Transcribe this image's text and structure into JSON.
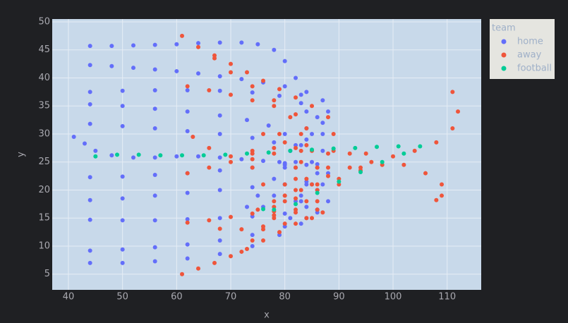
{
  "chart_data": {
    "type": "scatter",
    "x_label": "x",
    "y_label": "y",
    "legend_title": "team",
    "legend_position": "right",
    "grid": true,
    "xlim": [
      37,
      116.3
    ],
    "ylim": [
      2.2,
      50.5
    ],
    "xticks": [
      40,
      50,
      60,
      70,
      80,
      90,
      100,
      110
    ],
    "yticks": [
      5,
      10,
      15,
      20,
      25,
      30,
      35,
      40,
      45,
      50
    ],
    "series": [
      {
        "name": "home",
        "color": "#636efa",
        "x": [
          44,
          48,
          52,
          56,
          60,
          64,
          68,
          72,
          75,
          78,
          80,
          82,
          83,
          84,
          84,
          83,
          82,
          44,
          48,
          52,
          56,
          60,
          64,
          68,
          72,
          76,
          80,
          84,
          87,
          88,
          87,
          85,
          82,
          79,
          44,
          50,
          56,
          62,
          68,
          74,
          79,
          83,
          86,
          87,
          87,
          86,
          84,
          82,
          44,
          50,
          56,
          62,
          68,
          73,
          77,
          80,
          81,
          80,
          78,
          75,
          73,
          44,
          50,
          56,
          62,
          68,
          74,
          78,
          81,
          82,
          80,
          78,
          76,
          41,
          43,
          45,
          48,
          52,
          56,
          60,
          64,
          68,
          72,
          76,
          80,
          84,
          86,
          85,
          83,
          44,
          50,
          56,
          62,
          68,
          74,
          80,
          86,
          88,
          86,
          83,
          44,
          50,
          56,
          62,
          68,
          74,
          80,
          84,
          86,
          84,
          81,
          44,
          50,
          56,
          62,
          68,
          74,
          80,
          86,
          88,
          87,
          85,
          84,
          44,
          50,
          56,
          62,
          68,
          74,
          80,
          84,
          86,
          44,
          50,
          56,
          62,
          68,
          74,
          79,
          83,
          86
        ],
        "y": [
          45.7,
          45.7,
          45.8,
          45.9,
          46,
          46.2,
          46.3,
          46.3,
          46,
          45,
          43,
          40,
          37,
          34,
          31,
          28,
          25,
          42.3,
          42.1,
          41.8,
          41.5,
          41.2,
          40.8,
          40.3,
          39.8,
          39.2,
          38.5,
          37.5,
          36,
          34,
          32,
          30,
          28,
          25,
          37.5,
          37.7,
          37.8,
          37.8,
          37.7,
          37.4,
          36.8,
          35.5,
          33,
          30,
          27,
          24,
          21,
          18,
          35.3,
          35,
          34.5,
          34,
          33.3,
          32.5,
          31.5,
          30,
          27,
          24,
          22,
          19,
          17,
          31.8,
          31.4,
          31,
          30.5,
          30,
          29.3,
          28.5,
          27,
          24,
          21,
          19,
          17,
          29.5,
          28.3,
          27,
          26.2,
          25.8,
          25.8,
          26,
          26,
          25.8,
          25.5,
          25.2,
          24.8,
          24.5,
          23,
          21,
          19,
          22.3,
          22.4,
          22.7,
          23,
          23.5,
          24,
          24.5,
          24.6,
          23,
          20,
          18,
          18.2,
          18.5,
          19,
          19.5,
          20,
          20.5,
          21,
          21.5,
          20,
          17,
          15,
          14.7,
          14.6,
          14.6,
          14.8,
          15,
          15.3,
          15.8,
          16.5,
          18,
          21,
          25,
          29,
          9.2,
          9.4,
          9.8,
          10.3,
          11,
          12,
          13.5,
          15,
          16.5,
          7,
          7,
          7.3,
          7.8,
          8.6,
          10,
          12,
          14,
          16
        ]
      },
      {
        "name": "away",
        "color": "#ef553b",
        "x": [
          61,
          64,
          67,
          70,
          73,
          76,
          79,
          82,
          85,
          88,
          89,
          89,
          88,
          86,
          84,
          67,
          70,
          74,
          78,
          82,
          84,
          84,
          83,
          82,
          80,
          62,
          66,
          70,
          74,
          78,
          81,
          83,
          83,
          82,
          80,
          78,
          63,
          66,
          70,
          74,
          78,
          80,
          79,
          76,
          74,
          74,
          76,
          80,
          62,
          66,
          70,
          74,
          78,
          82,
          85,
          88,
          92,
          95,
          94,
          90,
          86,
          82,
          78,
          108,
          109,
          109,
          106,
          102,
          98,
          94,
          90,
          86,
          82,
          78,
          75,
          111,
          112,
          111,
          108,
          104,
          100,
          96,
          92,
          88,
          85,
          83,
          62,
          66,
          70,
          74,
          78,
          82,
          86,
          84,
          80,
          76,
          72,
          68,
          61,
          64,
          67,
          70,
          73,
          76,
          79,
          82,
          85,
          87,
          72,
          74,
          76,
          78,
          80,
          82,
          84,
          86
        ],
        "y": [
          47.5,
          45.5,
          44,
          42.5,
          41,
          39.5,
          38,
          36.5,
          35,
          33,
          30,
          27,
          24,
          21,
          18,
          43.5,
          41,
          38.5,
          36,
          33.5,
          31,
          28,
          25,
          22,
          19,
          38.5,
          37.8,
          37,
          36,
          35,
          33,
          30,
          27,
          24,
          21,
          18,
          29.5,
          27.5,
          26,
          25.5,
          26.5,
          28.5,
          30,
          30,
          27,
          24,
          21,
          19,
          23,
          24,
          25,
          26.5,
          27.5,
          27.5,
          27,
          26.5,
          26.5,
          26.5,
          24,
          21,
          18,
          16,
          15,
          18.2,
          19,
          21,
          23,
          24.5,
          24.5,
          23.5,
          22,
          20,
          18.5,
          17,
          16.5,
          37.5,
          34,
          31,
          28.5,
          27,
          26,
          25,
          24,
          22.5,
          21,
          20,
          14.2,
          14.6,
          15.2,
          15.8,
          16.2,
          16.5,
          16.5,
          15,
          14,
          13.5,
          13,
          13.1,
          5,
          6,
          7,
          8.2,
          9.5,
          11,
          12.5,
          14,
          15,
          16,
          9,
          11,
          13,
          15.5,
          18,
          20,
          22,
          24
        ]
      },
      {
        "name": "football",
        "color": "#00cc96",
        "x": [
          45,
          49,
          53,
          57,
          61,
          65,
          69,
          73,
          77,
          81,
          85,
          89,
          93,
          97,
          101,
          105,
          102,
          98,
          94,
          90,
          86,
          82,
          78,
          76
        ],
        "y": [
          26,
          26.3,
          26.3,
          26.2,
          26.2,
          26.2,
          26.3,
          26.5,
          26.7,
          27,
          27.2,
          27.4,
          27.5,
          27.7,
          27.8,
          27.8,
          26.5,
          25,
          23.2,
          21.5,
          19.5,
          17.5,
          16.5,
          16.6
        ]
      }
    ]
  }
}
